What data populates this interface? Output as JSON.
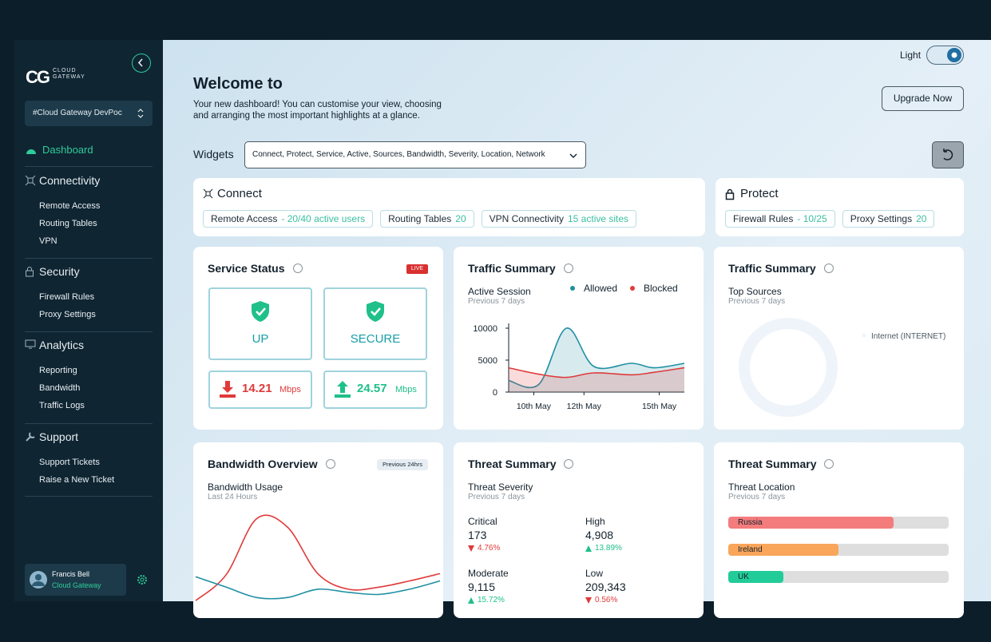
{
  "sidebar": {
    "logo": {
      "mark": "CG",
      "line1": "CLOUD",
      "line2": "GATEWAY"
    },
    "workspace": "#Cloud Gateway DevPoc",
    "dashboard": "Dashboard",
    "sections": [
      {
        "title": "Connectivity",
        "items": [
          "Remote Access",
          "Routing Tables",
          "VPN"
        ]
      },
      {
        "title": "Security",
        "items": [
          "Firewall Rules",
          "Proxy Settings"
        ]
      },
      {
        "title": "Analytics",
        "items": [
          "Reporting",
          "Bandwidth",
          "Traffic Logs"
        ]
      },
      {
        "title": "Support",
        "items": [
          "Support Tickets",
          "Raise a New Ticket"
        ]
      }
    ],
    "user": {
      "name": "Francis Bell",
      "org": "Cloud Gateway"
    }
  },
  "header": {
    "theme": "Light",
    "title": "Welcome to",
    "subtitle": [
      "Your new dashboard! You can customise your view, choosing",
      "and arranging the most important highlights at a glance."
    ],
    "upgrade": "Upgrade Now",
    "widgets_label": "Widgets",
    "widgets_value": "Connect, Protect, Service, Active, Sources, Bandwidth, Severity, Location, Network"
  },
  "connect": {
    "title": "Connect",
    "chips": [
      {
        "label": "Remote Access",
        "detail": "- 20/40 active users"
      },
      {
        "label": "Routing Tables",
        "detail": "20"
      },
      {
        "label": "VPN Connectivity",
        "detail": "15 active sites"
      }
    ]
  },
  "protect": {
    "title": "Protect",
    "chips": [
      {
        "label": "Firewall Rules",
        "detail": "- 10/25"
      },
      {
        "label": "Proxy Settings",
        "detail": "20"
      }
    ]
  },
  "service_status": {
    "title": "Service Status",
    "badge": "LIVE",
    "tiles": [
      "UP",
      "SECURE"
    ],
    "download": {
      "value": 14.21,
      "unit": "Mbps"
    },
    "upload": {
      "value": 24.57,
      "unit": "Mbps"
    }
  },
  "traffic_summary": {
    "title": "Traffic Summary",
    "subtitle": "Active Session",
    "period": "Previous 7 days",
    "chart_data": {
      "type": "area",
      "x": [
        9,
        10.2,
        11.3,
        12.4,
        13.9,
        14.8,
        16
      ],
      "xlim": [
        9,
        16
      ],
      "xticks": [
        {
          "value": 10,
          "label": "10th May"
        },
        {
          "value": 12,
          "label": "12th May"
        },
        {
          "value": 15,
          "label": "15th May"
        }
      ],
      "ylim": [
        0,
        10500
      ],
      "yticks": [
        0,
        5000,
        10000
      ],
      "series": [
        {
          "name": "Allowed",
          "color": "#1f8fa3",
          "values": [
            1800,
            1200,
            10000,
            4000,
            4500,
            3800,
            4500
          ]
        },
        {
          "name": "Blocked",
          "color": "#e03a3a",
          "values": [
            3800,
            2800,
            2300,
            3000,
            2700,
            3100,
            3800
          ]
        }
      ]
    }
  },
  "top_sources": {
    "title": "Traffic Summary",
    "subtitle": "Top Sources",
    "period": "Previous 7 days",
    "chart_data": {
      "type": "pie",
      "categories": [
        "Internet (INTERNET)"
      ],
      "values": [
        100
      ],
      "colors": [
        "#eef4f9"
      ]
    }
  },
  "bandwidth": {
    "title": "Bandwidth Overview",
    "badge": "Previous 24hrs",
    "subtitle": "Bandwidth Usage",
    "period": "Last 24 Hours",
    "chart_data": {
      "type": "line",
      "x": [
        0,
        1,
        2,
        3,
        4,
        5,
        6,
        7,
        8
      ],
      "xlim": [
        0,
        8
      ],
      "ylim": [
        0,
        100
      ],
      "series": [
        {
          "color": "#e03a3a",
          "values": [
            6,
            31,
            85,
            77,
            32,
            17,
            19,
            25,
            32
          ]
        },
        {
          "color": "#1f8fa3",
          "values": [
            29,
            19,
            9,
            9,
            17,
            14,
            12,
            17,
            25
          ]
        }
      ]
    }
  },
  "threat_severity": {
    "title": "Threat Summary",
    "subtitle": "Threat Severity",
    "period": "Previous 7 days",
    "items": [
      {
        "label": "Critical",
        "value": "173",
        "change": "4.76%",
        "direction": "down"
      },
      {
        "label": "High",
        "value": "4,908",
        "change": "13.89%",
        "direction": "up"
      },
      {
        "label": "Moderate",
        "value": "9,115",
        "change": "15.72%",
        "direction": "up"
      },
      {
        "label": "Low",
        "value": "209,343",
        "change": "0.56%",
        "direction": "down"
      }
    ]
  },
  "threat_location": {
    "title": "Threat Summary",
    "subtitle": "Threat Location",
    "period": "Previous 7 days",
    "chart_data": {
      "type": "bar",
      "orientation": "horizontal",
      "categories": [
        "Russia",
        "Ireland",
        "UK"
      ],
      "values": [
        75,
        50,
        25
      ],
      "colors": [
        "#f47c7c",
        "#f9a55a",
        "#22cc99"
      ],
      "xlim": [
        0,
        100
      ]
    }
  }
}
